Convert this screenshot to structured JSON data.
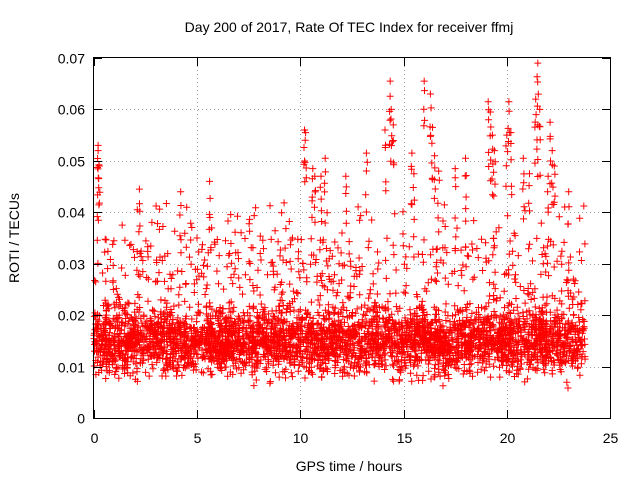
{
  "chart_data": {
    "type": "scatter",
    "title": "Day 200 of 2017, Rate Of TEC Index for receiver ffmj",
    "xlabel": "GPS time / hours",
    "ylabel": "ROTI / TECUs",
    "xlim": [
      0,
      25
    ],
    "ylim": [
      0,
      0.07
    ],
    "xticks": [
      0,
      5,
      10,
      15,
      20,
      25
    ],
    "yticks": [
      0,
      0.01,
      0.02,
      0.03,
      0.04,
      0.05,
      0.06,
      0.07
    ],
    "xtick_labels": [
      "0",
      "5",
      "10",
      "15",
      "20",
      "25"
    ],
    "ytick_labels": [
      "0",
      "0.01",
      "0.02",
      "0.03",
      "0.04",
      "0.05",
      "0.06",
      "0.07"
    ],
    "grid": true,
    "marker": "+",
    "series": [
      {
        "name": "ROTI",
        "color": "#ff0000",
        "x_range": [
          0.0,
          23.8
        ],
        "bulk_range": [
          0.005,
          0.03
        ],
        "outliers": [
          [
            0.2,
            0.053
          ],
          [
            0.2,
            0.052
          ],
          [
            0.25,
            0.049
          ],
          [
            2.2,
            0.0445
          ],
          [
            4.2,
            0.044
          ],
          [
            5.6,
            0.046
          ],
          [
            10.2,
            0.056
          ],
          [
            10.25,
            0.0555
          ],
          [
            10.6,
            0.0485
          ],
          [
            10.7,
            0.047
          ],
          [
            11.2,
            0.0505
          ],
          [
            11.0,
            0.047
          ],
          [
            12.2,
            0.047
          ],
          [
            13.2,
            0.0515
          ],
          [
            14.1,
            0.056
          ],
          [
            14.35,
            0.0655
          ],
          [
            14.4,
            0.06
          ],
          [
            14.5,
            0.057
          ],
          [
            15.4,
            0.0515
          ],
          [
            15.5,
            0.0475
          ],
          [
            16.0,
            0.0655
          ],
          [
            16.3,
            0.063
          ],
          [
            16.4,
            0.0565
          ],
          [
            16.5,
            0.051
          ],
          [
            16.7,
            0.048
          ],
          [
            17.5,
            0.0485
          ],
          [
            18.0,
            0.0505
          ],
          [
            19.1,
            0.0615
          ],
          [
            19.2,
            0.0595
          ],
          [
            19.3,
            0.055
          ],
          [
            19.4,
            0.052
          ],
          [
            20.0,
            0.055
          ],
          [
            20.1,
            0.0615
          ],
          [
            20.2,
            0.0555
          ],
          [
            20.8,
            0.0505
          ],
          [
            21.1,
            0.0475
          ],
          [
            21.5,
            0.069
          ],
          [
            21.4,
            0.062
          ],
          [
            21.6,
            0.06
          ],
          [
            21.5,
            0.057
          ],
          [
            22.1,
            0.0575
          ],
          [
            22.2,
            0.052
          ],
          [
            22.3,
            0.049
          ],
          [
            22.0,
            0.047
          ],
          [
            23.0,
            0.044
          ]
        ]
      }
    ]
  }
}
